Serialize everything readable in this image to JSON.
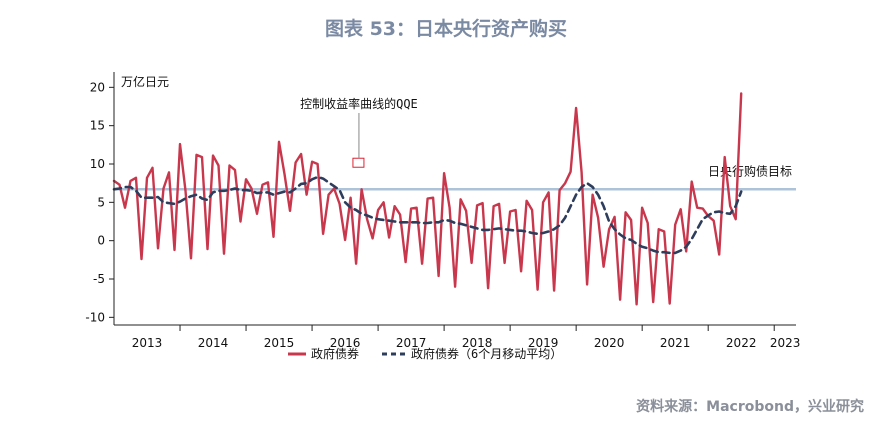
{
  "title": "图表 53：日本央行资产购买",
  "source": "资料来源：Macrobond，兴业研究",
  "chart_data": {
    "type": "line",
    "ylabel": "万亿日元",
    "ylim": [
      -11,
      22
    ],
    "yticks": [
      -10,
      -5,
      0,
      5,
      10,
      15,
      20
    ],
    "xlim": [
      2013.0,
      2023.33
    ],
    "xticks": [
      "2013",
      "2014",
      "2015",
      "2016",
      "2017",
      "2018",
      "2019",
      "2020",
      "2021",
      "2022",
      "2023"
    ],
    "target": {
      "label": "日央行购债目标",
      "value": 6.7
    },
    "annotation": {
      "text": "控制收益率曲线的QQE",
      "x": 2016.71,
      "y": 10.1
    },
    "legend": {
      "position": "bottom-center"
    },
    "colors": {
      "monthly": "#c9374c",
      "ma6": "#2f3d5c",
      "target": "#adc3da"
    },
    "series": [
      {
        "name": "政府债券",
        "style": "solid",
        "x0": 2013.0,
        "step": 0.08333,
        "values": [
          7.8,
          7.3,
          4.3,
          7.8,
          8.2,
          -2.4,
          8.2,
          9.5,
          -1.0,
          6.8,
          8.9,
          -1.2,
          12.6,
          6.5,
          -2.3,
          11.2,
          10.9,
          -1.1,
          11.1,
          9.8,
          -1.7,
          9.8,
          9.2,
          2.5,
          8.0,
          6.8,
          3.5,
          7.3,
          7.6,
          0.5,
          12.9,
          8.7,
          3.9,
          10.2,
          11.3,
          6.0,
          10.3,
          10.0,
          0.9,
          6.0,
          6.8,
          4.8,
          0.1,
          5.6,
          -3.0,
          6.7,
          2.8,
          0.3,
          4.0,
          5.0,
          0.4,
          4.5,
          3.4,
          -2.8,
          4.2,
          4.3,
          -3.0,
          5.5,
          5.6,
          -4.6,
          8.8,
          4.3,
          -6.0,
          5.4,
          3.9,
          -2.9,
          4.6,
          4.9,
          -6.2,
          4.5,
          4.8,
          -2.9,
          3.8,
          4.0,
          -4.0,
          5.2,
          4.0,
          -6.4,
          5.0,
          6.3,
          -6.5,
          6.6,
          7.5,
          9.0,
          17.3,
          8.9,
          -5.7,
          6.0,
          3.0,
          -3.4,
          1.5,
          3.1,
          -7.7,
          3.7,
          2.7,
          -8.3,
          4.3,
          2.3,
          -8.0,
          1.5,
          1.2,
          -8.2,
          2.1,
          4.1,
          -1.4,
          7.7,
          4.3,
          4.2,
          3.2,
          2.6,
          -1.8,
          10.9,
          4.5,
          2.8,
          19.2
        ]
      },
      {
        "name": "政府债券（6个月移动平均）",
        "style": "dashed",
        "x0": 2013.0,
        "step": 0.08333,
        "values": [
          6.7,
          6.8,
          7.0,
          7.0,
          6.5,
          5.6,
          5.6,
          5.6,
          5.7,
          5.0,
          4.9,
          4.8,
          5.1,
          5.5,
          5.8,
          6.0,
          5.5,
          5.3,
          6.3,
          6.5,
          6.5,
          6.6,
          6.8,
          6.6,
          6.6,
          6.5,
          6.2,
          6.3,
          6.3,
          6.0,
          6.2,
          6.4,
          6.3,
          6.8,
          7.4,
          7.5,
          8.0,
          8.3,
          8.1,
          7.6,
          7.1,
          6.6,
          5.0,
          4.3,
          4.0,
          3.5,
          3.3,
          3.0,
          2.8,
          2.7,
          2.6,
          2.5,
          2.4,
          2.4,
          2.4,
          2.4,
          2.3,
          2.3,
          2.4,
          2.4,
          2.7,
          2.6,
          2.3,
          2.2,
          2.0,
          1.8,
          1.6,
          1.4,
          1.4,
          1.5,
          1.6,
          1.5,
          1.4,
          1.3,
          1.3,
          1.2,
          1.0,
          0.9,
          1.0,
          1.2,
          1.5,
          2.0,
          3.0,
          4.5,
          6.0,
          7.0,
          7.5,
          7.0,
          6.0,
          4.5,
          2.5,
          1.5,
          0.8,
          0.3,
          0.1,
          -0.4,
          -0.8,
          -1.0,
          -1.3,
          -1.5,
          -1.5,
          -1.6,
          -1.6,
          -1.3,
          -0.8,
          0.2,
          1.5,
          2.8,
          3.3,
          3.7,
          3.8,
          3.6,
          3.5,
          4.5,
          6.4
        ]
      }
    ]
  }
}
